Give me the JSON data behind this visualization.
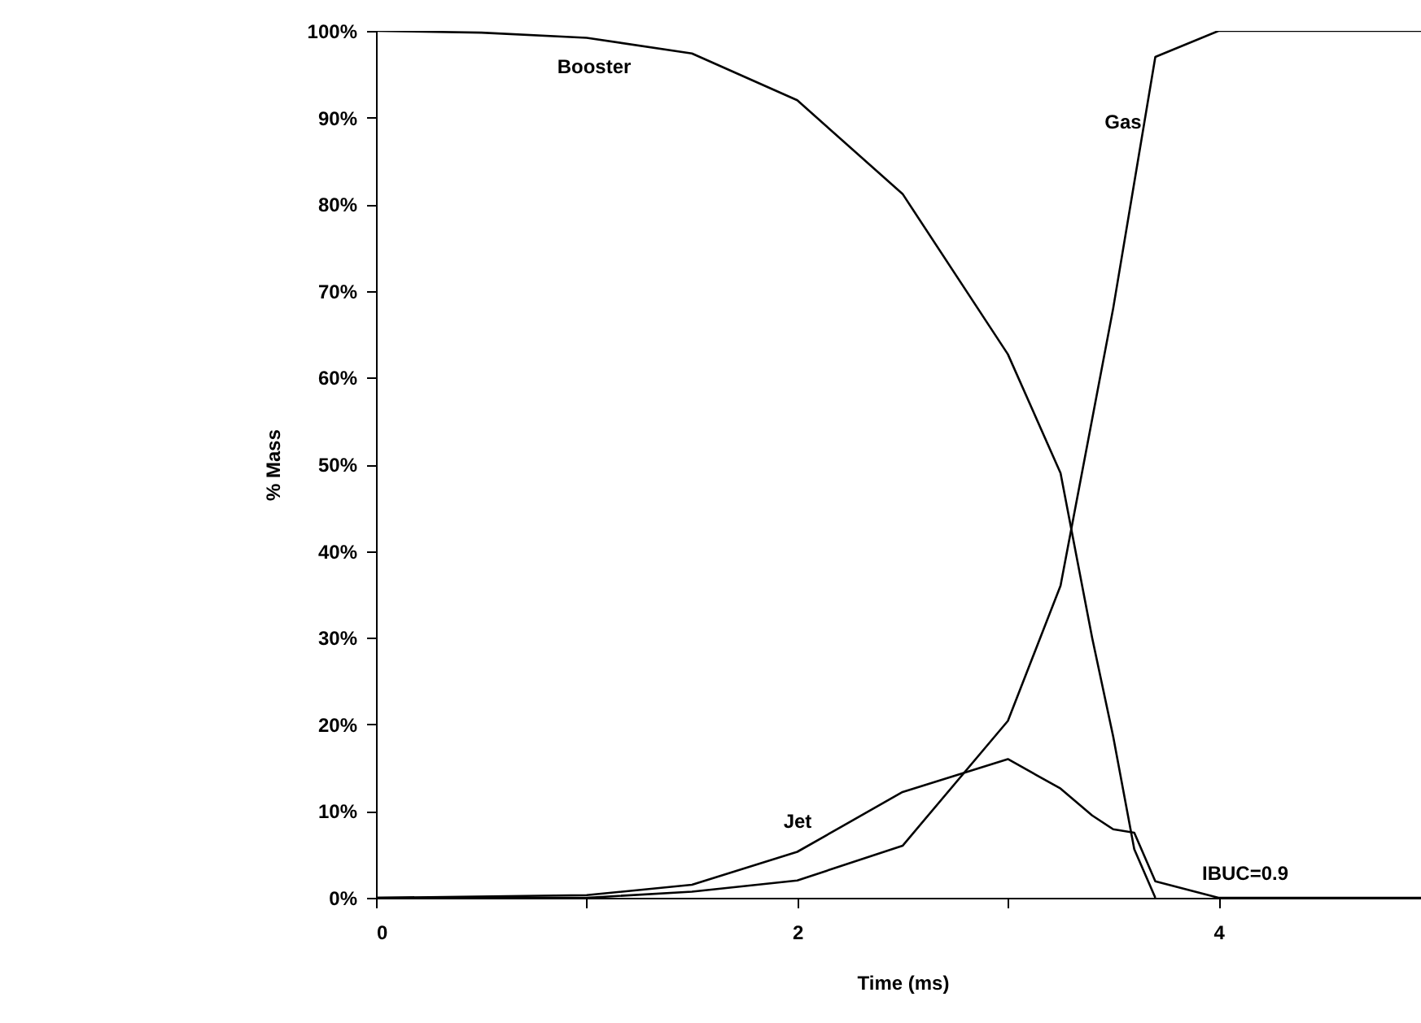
{
  "chart_data": {
    "type": "line",
    "xlabel": "Time (ms)",
    "ylabel": "% Mass",
    "series": [
      {
        "color": "#000000",
        "x": [
          0,
          0.5,
          1,
          1.5,
          2,
          2.5,
          3,
          3.25,
          3.4,
          3.5,
          3.6,
          3.7
        ],
        "values": [
          100,
          99.8,
          99.2,
          97.4,
          92,
          81.2,
          62.7,
          49,
          30,
          18.6,
          5.6,
          0
        ]
      },
      {
        "color": "#000000",
        "x": [
          0,
          1,
          1.5,
          2,
          2.5,
          3,
          3.25,
          3.5,
          3.7,
          4,
          5
        ],
        "values": [
          0,
          0,
          0.7,
          2,
          6,
          20.4,
          36,
          68,
          97,
          100,
          100
        ]
      },
      {
        "color": "#000000",
        "x": [
          0,
          1,
          1.5,
          2,
          2.5,
          3,
          3.25,
          3.4,
          3.5,
          3.6,
          3.7,
          4,
          5
        ],
        "values": [
          0,
          0.3,
          1.5,
          5.3,
          12.2,
          16,
          12.6,
          9.5,
          7.9,
          7.5,
          1.9,
          0,
          0
        ]
      }
    ],
    "xlim": [
      0,
      5
    ],
    "xticks": [
      0,
      {
        "value": 1,
        "label": null
      },
      2,
      {
        "value": 3,
        "label": null
      },
      4
    ],
    "ylim": [
      0,
      100
    ],
    "yticks": [
      {
        "value": 0,
        "label": "0%"
      },
      {
        "value": 10,
        "label": "10%"
      },
      {
        "value": 20,
        "label": "20%"
      },
      {
        "value": 30,
        "label": "30%"
      },
      {
        "value": 40,
        "label": "40%"
      },
      {
        "value": 50,
        "label": "50%"
      },
      {
        "value": 60,
        "label": "60%"
      },
      {
        "value": 70,
        "label": "70%"
      },
      {
        "value": 80,
        "label": "80%"
      },
      {
        "value": 90,
        "label": "90%"
      },
      {
        "value": 100,
        "label": "100%"
      }
    ],
    "annotations": [
      "Booster",
      "Gas",
      "Jet",
      "IBUC=0.9"
    ],
    "grid": false,
    "marker": "none",
    "line_style": "solid"
  }
}
